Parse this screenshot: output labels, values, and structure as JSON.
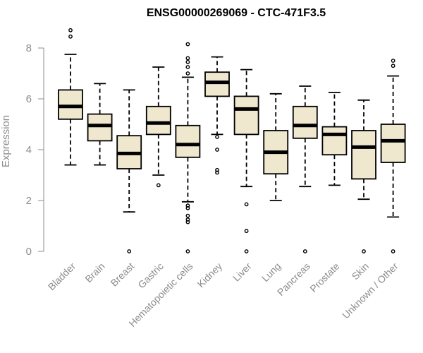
{
  "chart_data": {
    "type": "boxplot",
    "title": "ENSG00000269069 - CTC-471F3.5",
    "xlabel": "",
    "ylabel": "Expression",
    "ylim": [
      0,
      8.8
    ],
    "yticks": [
      0,
      2,
      4,
      6,
      8
    ],
    "box_fill": "#efe8cf",
    "categories": [
      "Bladder",
      "Brain",
      "Breast",
      "Gastric",
      "Hematopoietic cells",
      "Kidney",
      "Liver",
      "Lung",
      "Pancreas",
      "Prostate",
      "Skin",
      "Unknown / Other"
    ],
    "boxes": [
      {
        "whisker_low": 3.4,
        "q1": 5.2,
        "median": 5.7,
        "q3": 6.35,
        "whisker_high": 7.75,
        "outliers": [
          8.45,
          8.7
        ]
      },
      {
        "whisker_low": 3.4,
        "q1": 4.35,
        "median": 4.95,
        "q3": 5.4,
        "whisker_high": 6.6,
        "outliers": []
      },
      {
        "whisker_low": 1.55,
        "q1": 3.25,
        "median": 3.85,
        "q3": 4.55,
        "whisker_high": 6.35,
        "outliers": [
          0.0
        ]
      },
      {
        "whisker_low": 3.0,
        "q1": 4.6,
        "median": 5.05,
        "q3": 5.7,
        "whisker_high": 7.25,
        "outliers": [
          2.6
        ]
      },
      {
        "whisker_low": 1.95,
        "q1": 3.7,
        "median": 4.2,
        "q3": 4.95,
        "whisker_high": 6.85,
        "outliers": [
          0.0,
          1.15,
          1.25,
          1.4,
          1.7,
          1.8,
          7.0,
          7.25,
          7.45,
          7.6,
          8.15
        ]
      },
      {
        "whisker_low": 4.6,
        "q1": 6.1,
        "median": 6.65,
        "q3": 7.05,
        "whisker_high": 7.65,
        "outliers": [
          3.1,
          3.2,
          4.0,
          4.5
        ]
      },
      {
        "whisker_low": 2.55,
        "q1": 4.6,
        "median": 5.6,
        "q3": 6.1,
        "whisker_high": 7.15,
        "outliers": [
          0.0,
          0.8,
          1.85
        ]
      },
      {
        "whisker_low": 2.0,
        "q1": 3.05,
        "median": 3.9,
        "q3": 4.75,
        "whisker_high": 6.2,
        "outliers": []
      },
      {
        "whisker_low": 2.55,
        "q1": 4.45,
        "median": 4.95,
        "q3": 5.7,
        "whisker_high": 6.5,
        "outliers": [
          0.0
        ]
      },
      {
        "whisker_low": 2.6,
        "q1": 3.8,
        "median": 4.6,
        "q3": 4.9,
        "whisker_high": 6.25,
        "outliers": []
      },
      {
        "whisker_low": 2.05,
        "q1": 2.85,
        "median": 4.1,
        "q3": 4.75,
        "whisker_high": 5.95,
        "outliers": [
          0.0
        ]
      },
      {
        "whisker_low": 1.35,
        "q1": 3.5,
        "median": 4.35,
        "q3": 5.0,
        "whisker_high": 6.9,
        "outliers": [
          0.0,
          7.3,
          7.5
        ]
      }
    ]
  }
}
